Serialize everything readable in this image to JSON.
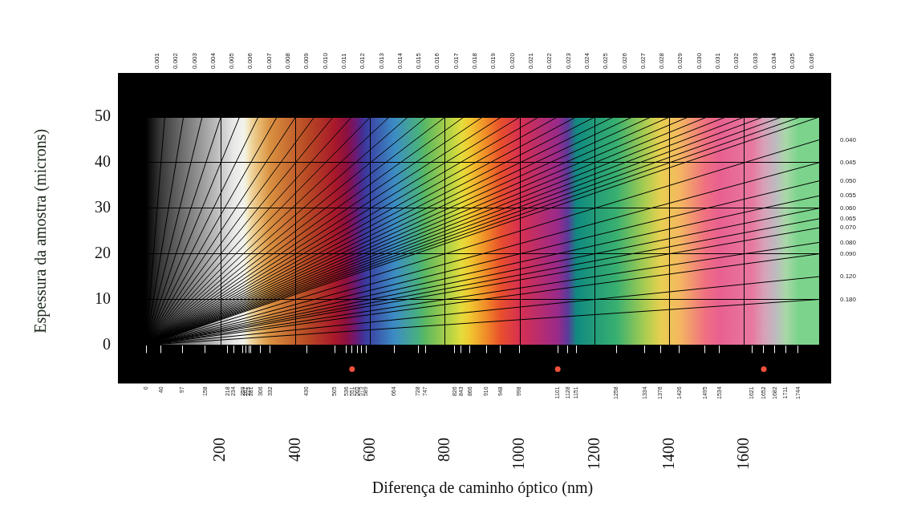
{
  "chart_data": {
    "type": "line",
    "x_label": "Diferença de caminho óptico (nm)",
    "y_label": "Espessura da amostra (microns)",
    "color": "#000000",
    "grid": true,
    "xlim": [
      0,
      1800
    ],
    "xticks": [
      200,
      400,
      600,
      800,
      1000,
      1200,
      1400,
      1600
    ],
    "ylim": [
      0,
      50
    ],
    "yticks": [
      0,
      10,
      20,
      30,
      40,
      50
    ],
    "x2lim": [
      0,
      0.036
    ],
    "x2ticks": [
      0.001,
      0.002,
      0.003,
      0.004,
      0.005,
      0.006,
      0.007,
      0.008,
      0.009,
      {
        "value": 0.01,
        "label": "0.010"
      },
      0.011,
      0.012,
      0.013,
      0.014,
      0.015,
      0.016,
      0.017,
      0.018,
      0.019,
      {
        "value": 0.02,
        "label": "0.020"
      },
      0.021,
      0.022,
      0.023,
      0.024,
      0.025,
      0.026,
      0.027,
      0.028,
      0.029,
      {
        "value": 0.03,
        "label": "0.030"
      },
      0.031,
      0.032,
      0.033,
      0.034,
      0.035,
      0.036
    ],
    "y2ticks": [
      {
        "value": 0.04,
        "label": "0.040"
      },
      0.045,
      {
        "value": 0.05,
        "label": "0.050"
      },
      0.055,
      {
        "value": 0.06,
        "label": "0.060"
      },
      0.065,
      {
        "value": 0.07,
        "label": "0.070"
      },
      {
        "value": 0.08,
        "label": "0.080"
      },
      {
        "value": 0.09,
        "label": "0.090"
      },
      {
        "value": 0.12,
        "label": "0.120"
      },
      {
        "value": 0.18,
        "label": "0.180"
      }
    ],
    "interference_scale": {
      "ticks": [
        0,
        40,
        97,
        158,
        218,
        234,
        259,
        267,
        275,
        281,
        306,
        332,
        430,
        505,
        536,
        551,
        565,
        575,
        589,
        664,
        728,
        747,
        826,
        843,
        866,
        910,
        948,
        998,
        1101,
        1128,
        1151,
        1258,
        1334,
        1376,
        1426,
        1495,
        1534,
        1621,
        1652,
        1682,
        1711,
        1744
      ],
      "colors": [
        "#000000",
        "#3a3a3a",
        "#6e6e6e",
        "#a2a2a2",
        "#d8d8d8",
        "#e8e8e8",
        "#f2f2ee",
        "#f4efd8",
        "#f2e2b8",
        "#eed6a0",
        "#e6b46a",
        "#d99040",
        "#b84a24",
        "#a8182a",
        "#8c1040",
        "#7a1460",
        "#641e7a",
        "#4a2a8c",
        "#3a3ca0",
        "#3c8cc4",
        "#48b080",
        "#5cb860",
        "#c8d840",
        "#e4dc3c",
        "#f0c830",
        "#f08a28",
        "#e8502c",
        "#d83050",
        "#9a2a8a",
        "#5a3a9a",
        "#108a80",
        "#38b070",
        "#a8cc50",
        "#e8d050",
        "#f4b860",
        "#f07080",
        "#e86090",
        "#e878a0",
        "#d8a0b8",
        "#c0b8c0",
        "#a8d8a8",
        "#7cd48c"
      ]
    },
    "order_marks": {
      "values": [
        551,
        1101,
        1652
      ],
      "color": "#f0503c"
    }
  }
}
